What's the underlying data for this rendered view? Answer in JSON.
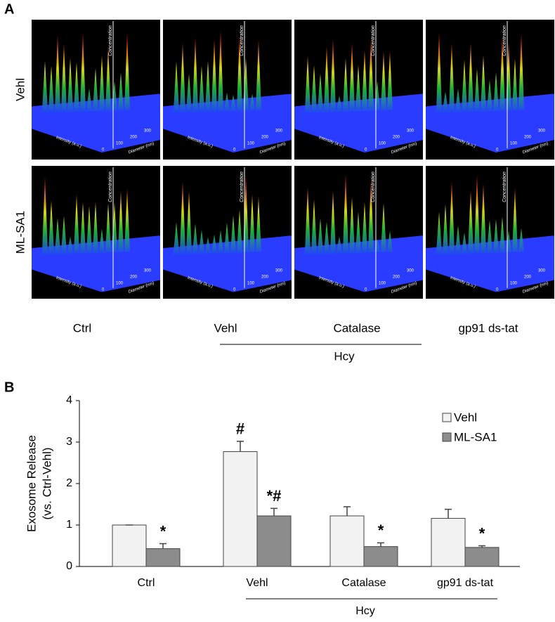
{
  "panel_a": {
    "label": "A",
    "rows": [
      "Vehl",
      "ML-SA1"
    ],
    "columns": [
      "Ctrl",
      "Vehl",
      "Catalase",
      "gp91 ds-tat"
    ],
    "group_label": "Hcy",
    "image_axes": {
      "z": "Concentration",
      "x": "Intensity (a.u.)",
      "y": "Diameter (nm)",
      "y_ticks": [
        "0",
        "100",
        "200",
        "300"
      ]
    }
  },
  "chart_data": {
    "type": "bar",
    "panel_label": "B",
    "y_label": [
      "Exosome Release",
      "(vs. Ctrl-Vehl)"
    ],
    "categories": [
      "Ctrl",
      "Vehl",
      "Catalase",
      "gp91 ds-tat"
    ],
    "group_label": "Hcy",
    "ylim": [
      0,
      4
    ],
    "yticks": [
      0,
      1,
      2,
      3,
      4
    ],
    "legend": "top-right",
    "series": [
      {
        "name": "Vehl",
        "color": "#f2f2f2",
        "values": [
          1.0,
          2.77,
          1.22,
          1.16
        ],
        "errors": [
          0,
          0.25,
          0.22,
          0.22
        ],
        "annotations": [
          null,
          "#",
          null,
          null
        ]
      },
      {
        "name": "ML-SA1",
        "color": "#8c8c8c",
        "values": [
          0.43,
          1.22,
          0.48,
          0.46
        ],
        "errors": [
          0.12,
          0.18,
          0.09,
          0.04
        ],
        "annotations": [
          "*",
          "*#",
          "*",
          "*"
        ]
      }
    ]
  }
}
